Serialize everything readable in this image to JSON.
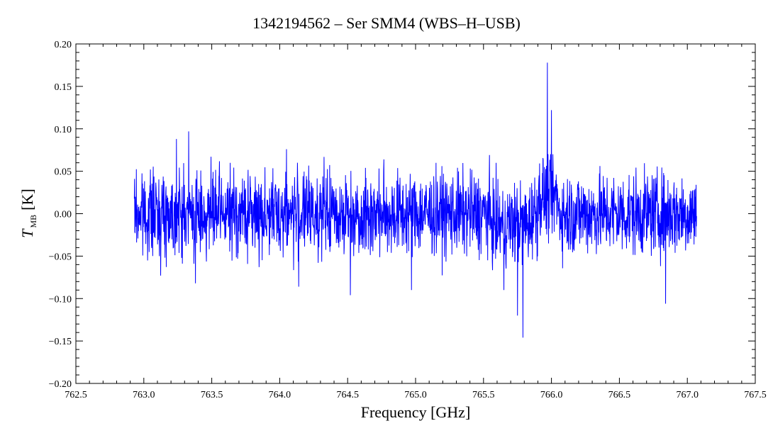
{
  "chart_data": {
    "type": "line",
    "title": "1342194562 – Ser SMM4 (WBS–H–USB)",
    "xlabel": "Frequency [GHz]",
    "ylabel": {
      "main": "T",
      "subscript": "MB",
      "unit": "[K]"
    },
    "xlim": [
      762.5,
      767.5
    ],
    "ylim": [
      -0.2,
      0.2
    ],
    "xticks": [
      "762.5",
      "763.0",
      "763.5",
      "764.0",
      "764.5",
      "765.0",
      "765.5",
      "766.0",
      "766.5",
      "767.0",
      "767.5"
    ],
    "yticks": [
      "0.20",
      "0.15",
      "0.10",
      "0.05",
      "0.00",
      "−0.05",
      "−0.10",
      "−0.15",
      "−0.20"
    ],
    "grid": false,
    "series": [
      {
        "color": "#0000ff",
        "x_range": [
          762.93,
          767.07
        ],
        "features": [
          {
            "x": 763.24,
            "y": 0.088
          },
          {
            "x": 763.33,
            "y": 0.097
          },
          {
            "x": 763.38,
            "y": -0.082
          },
          {
            "x": 764.05,
            "y": 0.076
          },
          {
            "x": 764.14,
            "y": -0.086
          },
          {
            "x": 764.52,
            "y": -0.096
          },
          {
            "x": 764.97,
            "y": -0.09
          },
          {
            "x": 765.65,
            "y": -0.09
          },
          {
            "x": 765.75,
            "y": -0.12
          },
          {
            "x": 765.79,
            "y": -0.146
          },
          {
            "x": 765.97,
            "y": 0.178
          },
          {
            "x": 766.0,
            "y": 0.122
          },
          {
            "x": 766.84,
            "y": -0.106
          }
        ]
      }
    ]
  }
}
